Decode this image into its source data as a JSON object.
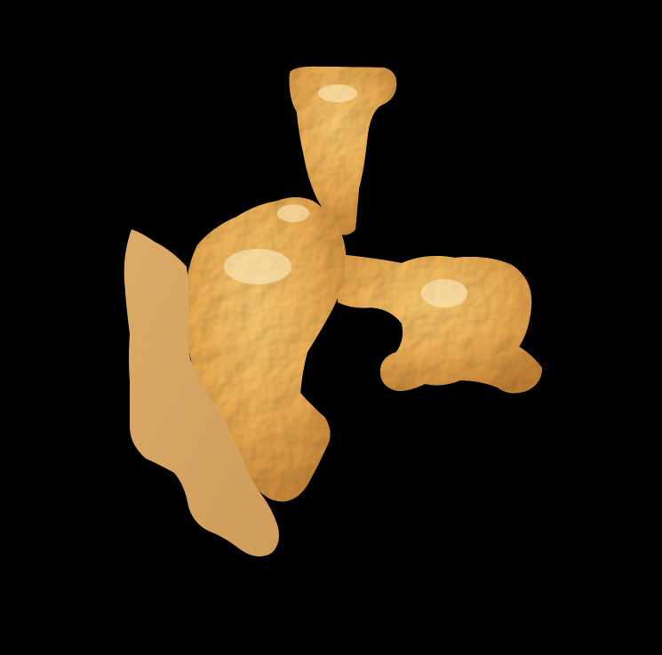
{
  "scene": {
    "background_color": "#000000",
    "surface_color": "#f2c47c",
    "cut_face_color": "#d9a865",
    "highlight_color": "#ffe9b8",
    "shadow_color": "#b88a4e"
  }
}
